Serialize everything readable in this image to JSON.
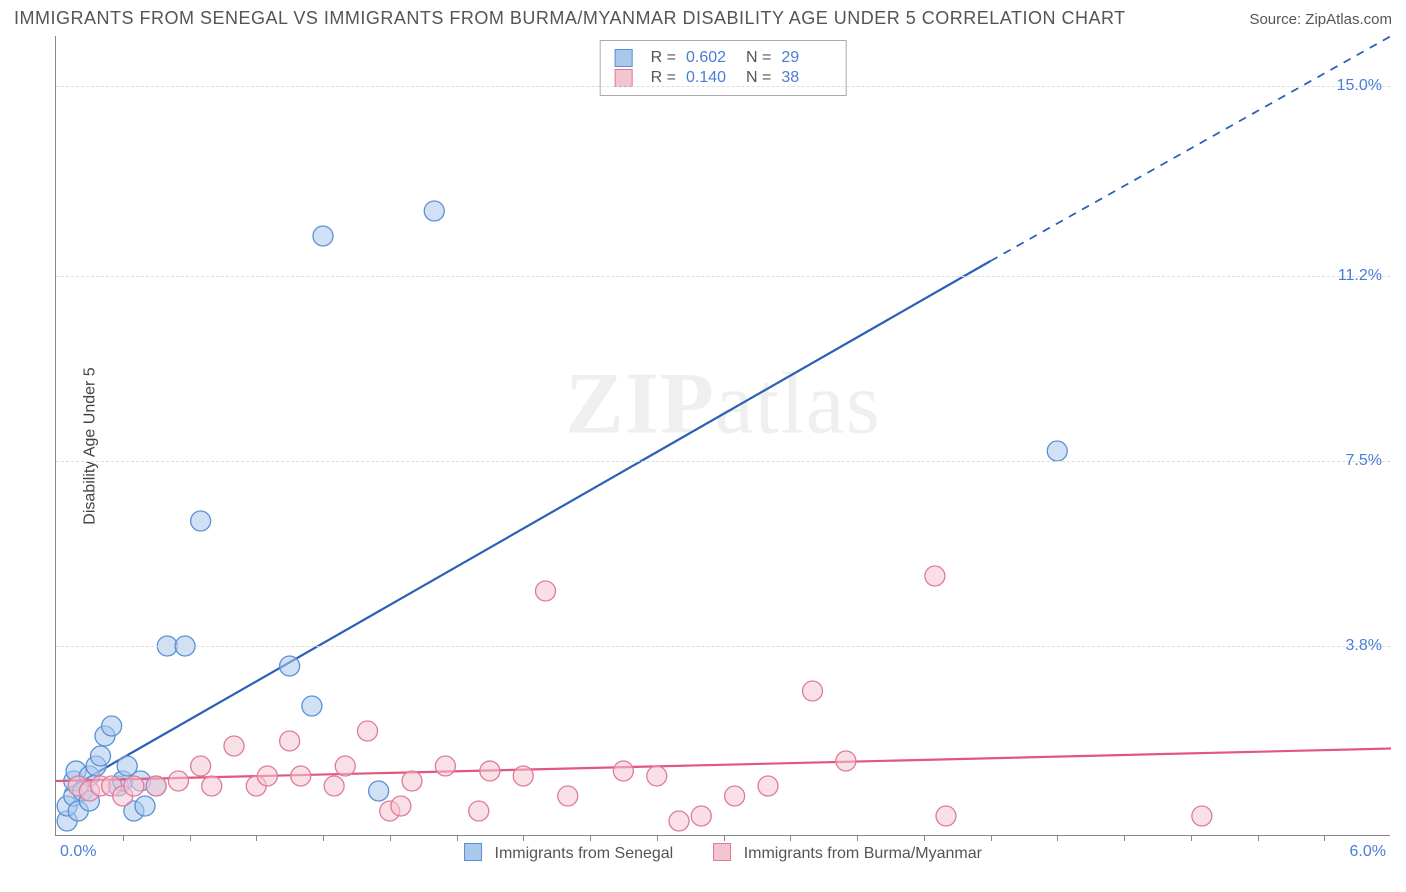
{
  "header": {
    "title": "IMMIGRANTS FROM SENEGAL VS IMMIGRANTS FROM BURMA/MYANMAR DISABILITY AGE UNDER 5 CORRELATION CHART",
    "source": "Source: ZipAtlas.com"
  },
  "watermark_a": "ZIP",
  "watermark_b": "atlas",
  "chart": {
    "type": "scatter",
    "ylabel": "Disability Age Under 5",
    "xlim": [
      0.0,
      6.0
    ],
    "ylim": [
      0.0,
      16.0
    ],
    "x_left_label": "0.0%",
    "x_right_label": "6.0%",
    "y_ticks": [
      {
        "v": 3.8,
        "label": "3.8%"
      },
      {
        "v": 7.5,
        "label": "7.5%"
      },
      {
        "v": 11.2,
        "label": "11.2%"
      },
      {
        "v": 15.0,
        "label": "15.0%"
      }
    ],
    "x_minor_ticks_count": 19,
    "background_color": "#ffffff",
    "grid_color": "#dddddd",
    "axis_color": "#888888",
    "point_radius": 10,
    "point_opacity": 0.55,
    "line_width": 2.2,
    "series": [
      {
        "id": "senegal",
        "legend_label": "Immigrants from Senegal",
        "color_fill": "#a9c8ec",
        "color_stroke": "#5a8fd4",
        "line_color": "#2b5fb8",
        "R": "0.602",
        "N": "29",
        "trend": {
          "x0": 0.04,
          "y0": 0.9,
          "x1": 4.2,
          "y1": 11.5,
          "dash_from_x": 4.2,
          "dash_to_x": 6.0,
          "dash_to_y": 16.0
        },
        "points": [
          [
            0.05,
            0.3
          ],
          [
            0.05,
            0.6
          ],
          [
            0.08,
            0.8
          ],
          [
            0.08,
            1.1
          ],
          [
            0.09,
            1.3
          ],
          [
            0.1,
            0.5
          ],
          [
            0.12,
            0.9
          ],
          [
            0.15,
            0.7
          ],
          [
            0.15,
            1.2
          ],
          [
            0.18,
            1.4
          ],
          [
            0.2,
            1.6
          ],
          [
            0.22,
            2.0
          ],
          [
            0.25,
            2.2
          ],
          [
            0.28,
            1.0
          ],
          [
            0.3,
            1.1
          ],
          [
            0.32,
            1.4
          ],
          [
            0.35,
            0.5
          ],
          [
            0.38,
            1.1
          ],
          [
            0.4,
            0.6
          ],
          [
            0.45,
            1.0
          ],
          [
            0.5,
            3.8
          ],
          [
            0.58,
            3.8
          ],
          [
            0.65,
            6.3
          ],
          [
            1.05,
            3.4
          ],
          [
            1.15,
            2.6
          ],
          [
            1.2,
            12.0
          ],
          [
            1.45,
            0.9
          ],
          [
            1.7,
            12.5
          ],
          [
            4.5,
            7.7
          ]
        ]
      },
      {
        "id": "burma",
        "legend_label": "Immigrants from Burma/Myanmar",
        "color_fill": "#f4c4d1",
        "color_stroke": "#df7a9a",
        "line_color": "#e2577e",
        "R": "0.140",
        "N": "38",
        "trend": {
          "x0": 0.0,
          "y0": 1.1,
          "x1": 6.0,
          "y1": 1.75,
          "dash_from_x": 6.0,
          "dash_to_x": 6.0,
          "dash_to_y": 1.75
        },
        "points": [
          [
            0.1,
            1.0
          ],
          [
            0.15,
            0.9
          ],
          [
            0.2,
            1.0
          ],
          [
            0.25,
            1.0
          ],
          [
            0.3,
            0.8
          ],
          [
            0.35,
            1.0
          ],
          [
            0.45,
            1.0
          ],
          [
            0.55,
            1.1
          ],
          [
            0.65,
            1.4
          ],
          [
            0.7,
            1.0
          ],
          [
            0.8,
            1.8
          ],
          [
            0.9,
            1.0
          ],
          [
            0.95,
            1.2
          ],
          [
            1.05,
            1.9
          ],
          [
            1.1,
            1.2
          ],
          [
            1.25,
            1.0
          ],
          [
            1.3,
            1.4
          ],
          [
            1.4,
            2.1
          ],
          [
            1.5,
            0.5
          ],
          [
            1.55,
            0.6
          ],
          [
            1.6,
            1.1
          ],
          [
            1.75,
            1.4
          ],
          [
            1.9,
            0.5
          ],
          [
            1.95,
            1.3
          ],
          [
            2.1,
            1.2
          ],
          [
            2.2,
            4.9
          ],
          [
            2.3,
            0.8
          ],
          [
            2.55,
            1.3
          ],
          [
            2.7,
            1.2
          ],
          [
            2.8,
            0.3
          ],
          [
            2.9,
            0.4
          ],
          [
            3.05,
            0.8
          ],
          [
            3.2,
            1.0
          ],
          [
            3.4,
            2.9
          ],
          [
            3.55,
            1.5
          ],
          [
            3.95,
            5.2
          ],
          [
            4.0,
            0.4
          ],
          [
            5.15,
            0.4
          ]
        ]
      }
    ],
    "top_legend_R_label": "R =",
    "top_legend_N_label": "N ="
  }
}
